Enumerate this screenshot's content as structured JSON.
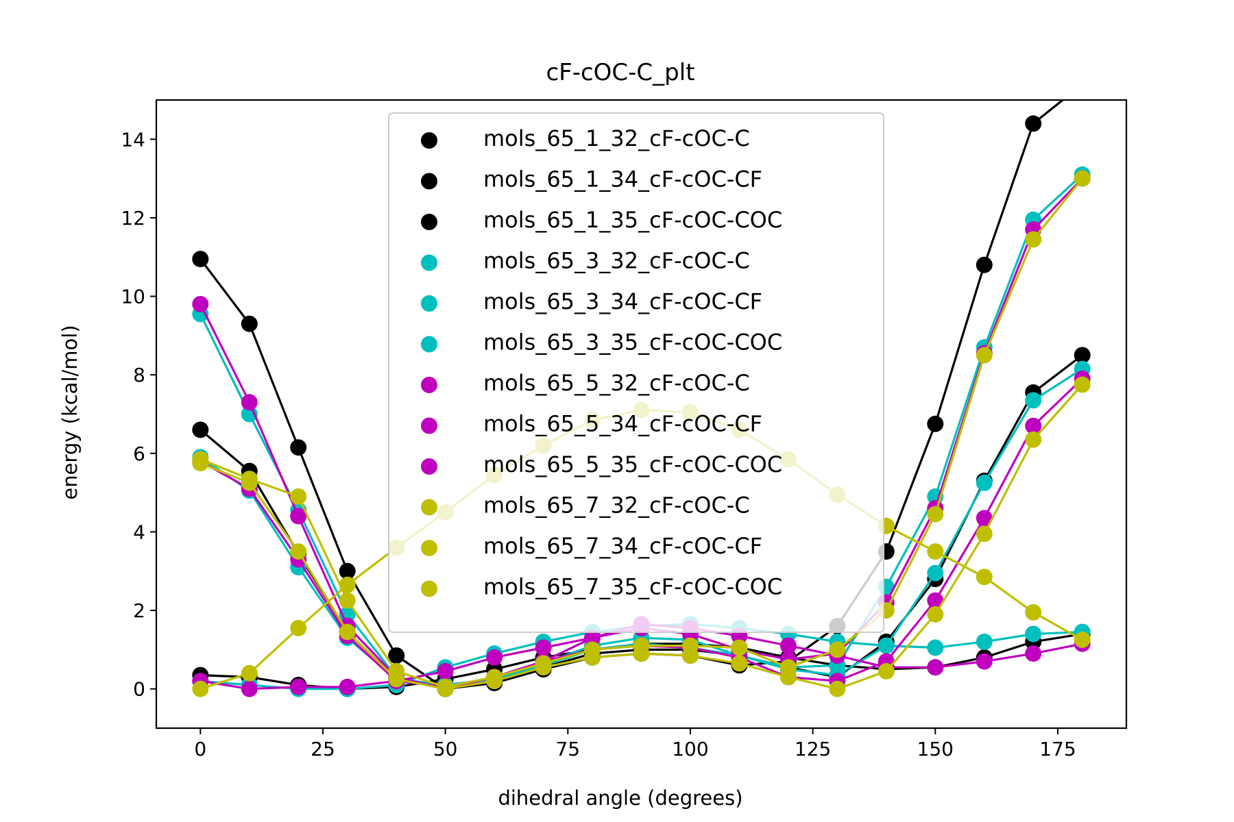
{
  "chart_data": {
    "type": "line",
    "title": "cF-cOC-C_plt",
    "xlabel": "dihedral angle (degrees)",
    "ylabel": "energy (kcal/mol)",
    "xlim": [
      -9,
      189
    ],
    "ylim": [
      -1,
      15
    ],
    "xticks": [
      0,
      25,
      50,
      75,
      100,
      125,
      150,
      175
    ],
    "yticks": [
      0,
      2,
      4,
      6,
      8,
      10,
      12,
      14
    ],
    "grid": false,
    "legend_position": "upper center",
    "x": [
      0,
      10,
      20,
      30,
      40,
      50,
      60,
      70,
      80,
      90,
      100,
      110,
      120,
      130,
      140,
      150,
      160,
      170,
      180
    ],
    "series": [
      {
        "name": "mols_65_1_32_cF-cOC-C",
        "color": "#000000",
        "values": [
          6.6,
          5.55,
          3.45,
          1.45,
          0.25,
          0.05,
          0.2,
          0.55,
          0.9,
          1.0,
          1.0,
          0.85,
          0.55,
          0.3,
          1.2,
          2.8,
          5.3,
          7.55,
          8.5
        ]
      },
      {
        "name": "mols_65_1_34_cF-cOC-CF",
        "color": "#000000",
        "values": [
          0.35,
          0.3,
          0.1,
          0.0,
          0.05,
          0.25,
          0.5,
          0.8,
          1.0,
          1.15,
          1.15,
          1.05,
          0.8,
          0.6,
          0.5,
          0.55,
          0.8,
          1.2,
          1.4
        ]
      },
      {
        "name": "mols_65_1_35_cF-cOC-COC",
        "color": "#000000",
        "values": [
          10.95,
          9.3,
          6.15,
          3.0,
          0.85,
          0.0,
          0.15,
          0.5,
          0.8,
          0.9,
          0.85,
          0.6,
          0.7,
          1.6,
          3.5,
          6.75,
          10.8,
          14.4,
          15.4
        ]
      },
      {
        "name": "mols_65_3_32_cF-cOC-C",
        "color": "#00bfbf",
        "values": [
          5.9,
          5.05,
          3.1,
          1.3,
          0.25,
          0.1,
          0.25,
          0.6,
          1.0,
          1.15,
          1.05,
          0.85,
          0.5,
          0.35,
          1.1,
          2.95,
          5.25,
          7.35,
          8.15
        ]
      },
      {
        "name": "mols_65_3_34_cF-cOC-CF",
        "color": "#00bfbf",
        "values": [
          0.2,
          0.1,
          0.0,
          0.0,
          0.1,
          0.55,
          0.9,
          1.2,
          1.45,
          1.6,
          1.65,
          1.55,
          1.4,
          1.2,
          1.1,
          1.05,
          1.2,
          1.4,
          1.45
        ]
      },
      {
        "name": "mols_65_3_35_cF-cOC-COC",
        "color": "#00bfbf",
        "values": [
          9.55,
          7.0,
          4.55,
          1.9,
          0.3,
          0.0,
          0.25,
          0.65,
          1.1,
          1.3,
          1.25,
          0.85,
          0.55,
          0.6,
          2.6,
          4.9,
          8.7,
          11.95,
          13.1
        ]
      },
      {
        "name": "mols_65_5_32_cF-cOC-C",
        "color": "#bf00bf",
        "values": [
          5.8,
          5.1,
          3.3,
          1.35,
          0.2,
          0.05,
          0.3,
          0.7,
          1.0,
          1.1,
          1.05,
          0.8,
          0.3,
          0.2,
          0.7,
          2.25,
          4.35,
          6.7,
          7.9
        ]
      },
      {
        "name": "mols_65_5_34_cF-cOC-CF",
        "color": "#bf00bf",
        "values": [
          0.2,
          0.0,
          0.05,
          0.05,
          0.2,
          0.45,
          0.8,
          1.05,
          1.3,
          1.65,
          1.55,
          1.35,
          1.1,
          0.85,
          0.55,
          0.55,
          0.7,
          0.9,
          1.15
        ]
      },
      {
        "name": "mols_65_5_35_cF-cOC-COC",
        "color": "#bf00bf",
        "values": [
          9.8,
          7.3,
          4.4,
          1.6,
          0.3,
          0.0,
          0.3,
          0.7,
          1.3,
          1.55,
          1.4,
          1.0,
          0.75,
          0.9,
          2.2,
          4.6,
          8.55,
          11.7,
          13.0
        ]
      },
      {
        "name": "mols_65_7_32_cF-cOC-C",
        "color": "#bfbf00",
        "values": [
          5.75,
          5.25,
          3.5,
          1.45,
          0.25,
          0.0,
          0.2,
          0.55,
          0.8,
          0.9,
          0.85,
          0.65,
          0.3,
          0.0,
          0.45,
          1.9,
          3.95,
          6.35,
          7.75
        ]
      },
      {
        "name": "mols_65_7_34_cF-cOC-CF",
        "color": "#bfbf00",
        "values": [
          0.0,
          0.4,
          1.55,
          2.65,
          3.6,
          4.5,
          5.45,
          6.2,
          6.85,
          7.1,
          7.05,
          6.6,
          5.85,
          4.95,
          4.15,
          3.5,
          2.85,
          1.95,
          1.25
        ]
      },
      {
        "name": "mols_65_7_35_cF-cOC-COC",
        "color": "#bfbf00",
        "values": [
          5.85,
          5.35,
          4.9,
          2.25,
          0.45,
          0.05,
          0.3,
          0.65,
          1.0,
          1.1,
          1.1,
          1.05,
          0.55,
          1.0,
          2.0,
          4.45,
          8.5,
          11.45,
          13.0
        ]
      }
    ]
  }
}
